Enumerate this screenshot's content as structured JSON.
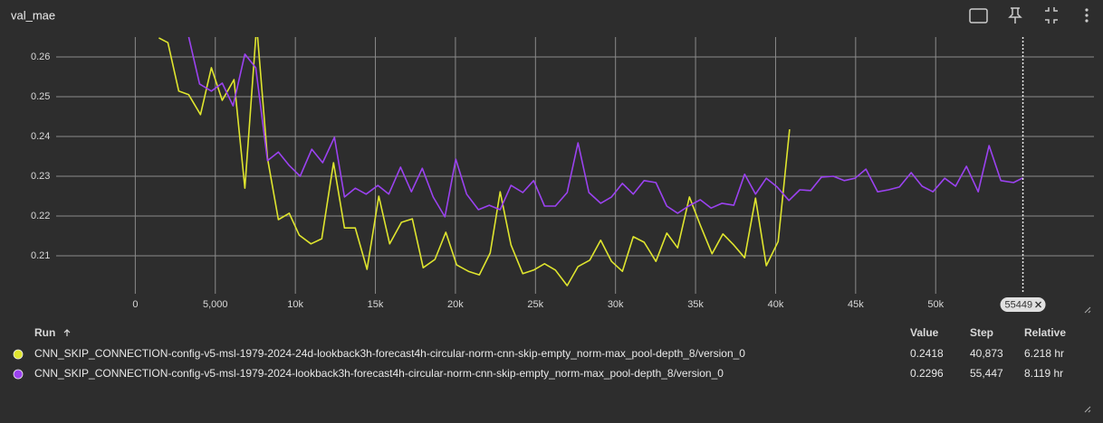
{
  "header": {
    "title": "val_mae"
  },
  "chart_data": {
    "type": "line",
    "xlim": [
      -5000,
      60000
    ],
    "ylim": [
      0.2,
      0.265
    ],
    "xticks": [
      0,
      {
        "value": 5000,
        "label": "5,000"
      },
      {
        "value": 10000,
        "label": "10k"
      },
      {
        "value": 15000,
        "label": "15k"
      },
      {
        "value": 20000,
        "label": "20k"
      },
      {
        "value": 25000,
        "label": "25k"
      },
      {
        "value": 30000,
        "label": "30k"
      },
      {
        "value": 35000,
        "label": "35k"
      },
      {
        "value": 40000,
        "label": "40k"
      },
      {
        "value": 45000,
        "label": "45k"
      },
      {
        "value": 50000,
        "label": "50k"
      }
    ],
    "yticks": [
      0.21,
      0.22,
      0.23,
      0.24,
      0.25,
      0.26
    ],
    "grid": true,
    "cursor_step": 55449,
    "series": [
      {
        "name": "CNN_SKIP_CONNECTION-config-v5-msl-1979-2024-24d-lookback3h-forecast4h-circular-norm-cnn-skip-empty_norm-max_pool-depth_8/version_0",
        "color": "#dfe52e",
        "x": [
          1470,
          2036,
          2715,
          3337,
          4072,
          4751,
          5430,
          6165,
          6844,
          7579,
          8258,
          8937,
          9616,
          10238,
          10974,
          11651,
          12387,
          13066,
          13744,
          14480,
          15215,
          15894,
          16629,
          17308,
          17986,
          18721,
          19400,
          20079,
          20814,
          21493,
          22171,
          22794,
          23472,
          24208,
          24886,
          25565,
          26244,
          26979,
          27658,
          28393,
          29072,
          29750,
          30429,
          31108,
          31787,
          32522,
          33201,
          33879,
          34615,
          35293,
          36029,
          36707,
          37386,
          38065,
          38744,
          39422,
          40158,
          40873
        ],
        "values": [
          0.2648,
          0.2636,
          0.2514,
          0.2505,
          0.2455,
          0.2573,
          0.2491,
          0.2543,
          0.227,
          0.268,
          0.2345,
          0.2191,
          0.2207,
          0.2152,
          0.213,
          0.2143,
          0.2334,
          0.217,
          0.217,
          0.2066,
          0.225,
          0.213,
          0.2184,
          0.2193,
          0.207,
          0.2091,
          0.2159,
          0.2077,
          0.2061,
          0.2052,
          0.2107,
          0.2261,
          0.2127,
          0.2055,
          0.2064,
          0.208,
          0.2064,
          0.2025,
          0.2073,
          0.2089,
          0.2139,
          0.2086,
          0.2061,
          0.2148,
          0.2134,
          0.2086,
          0.2157,
          0.212,
          0.2248,
          0.2177,
          0.2105,
          0.2155,
          0.2127,
          0.2095,
          0.2245,
          0.2075,
          0.2136,
          0.2418
        ]
      },
      {
        "name": "CNN_SKIP_CONNECTION-config-v5-msl-1979-2024-lookback3h-forecast4h-circular-norm-cnn-skip-empty_norm-max_pool-depth_8/version_0",
        "color": "#9b42f0",
        "x": [
          3337,
          4016,
          4751,
          5430,
          6108,
          6844,
          7522,
          8258,
          8937,
          9616,
          10294,
          11029,
          11708,
          12443,
          13066,
          13744,
          14423,
          15158,
          15837,
          16572,
          17251,
          17930,
          18608,
          19344,
          20022,
          20701,
          21436,
          22115,
          22794,
          23472,
          24208,
          24886,
          25565,
          26244,
          26979,
          27658,
          28337,
          29072,
          29750,
          30429,
          31108,
          31787,
          32522,
          33201,
          33879,
          34558,
          35293,
          35972,
          36651,
          37386,
          38065,
          38744,
          39422,
          40101,
          40836,
          41515,
          42194,
          42872,
          43608,
          44286,
          44965,
          45644,
          46379,
          47058,
          47736,
          48472,
          49150,
          49829,
          50564,
          51243,
          51922,
          52657,
          53336,
          54071,
          54863,
          55447
        ],
        "values": [
          0.265,
          0.2532,
          0.2514,
          0.2534,
          0.2477,
          0.2607,
          0.2573,
          0.2339,
          0.2361,
          0.2327,
          0.23,
          0.2368,
          0.2334,
          0.2398,
          0.2248,
          0.227,
          0.2255,
          0.2277,
          0.2255,
          0.2323,
          0.2261,
          0.232,
          0.2248,
          0.2198,
          0.2343,
          0.2255,
          0.2216,
          0.2227,
          0.2216,
          0.2277,
          0.2259,
          0.2289,
          0.2225,
          0.2225,
          0.2259,
          0.2384,
          0.2259,
          0.2232,
          0.2248,
          0.2282,
          0.2255,
          0.2289,
          0.2284,
          0.2225,
          0.2207,
          0.2225,
          0.2241,
          0.222,
          0.2232,
          0.2227,
          0.2305,
          0.2255,
          0.2295,
          0.2273,
          0.2239,
          0.2266,
          0.2264,
          0.2298,
          0.23,
          0.2289,
          0.2295,
          0.2318,
          0.2261,
          0.2266,
          0.2273,
          0.2309,
          0.2275,
          0.2261,
          0.2295,
          0.2275,
          0.2325,
          0.2261,
          0.2377,
          0.2289,
          0.2284,
          0.2296
        ]
      }
    ]
  },
  "table": {
    "columns": [
      "Run",
      "Value",
      "Step",
      "Relative"
    ],
    "rows": [
      [
        "0.2418",
        "40,873",
        "6.218 hr"
      ],
      [
        "0.2296",
        "55,447",
        "8.119 hr"
      ]
    ]
  }
}
